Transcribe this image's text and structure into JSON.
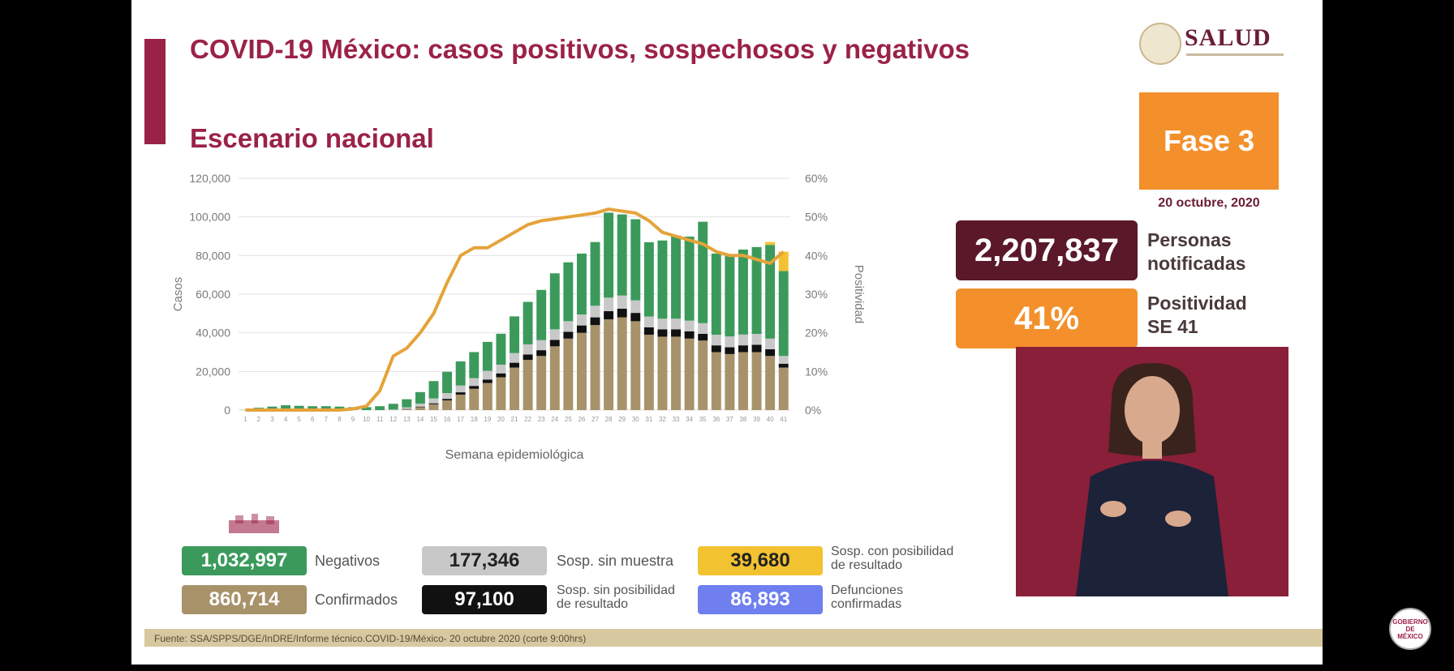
{
  "header": {
    "title": "COVID-19 México: casos positivos, sospechosos y negativos",
    "subtitle": "Escenario nacional",
    "logo_text": "SALUD"
  },
  "sidebar": {
    "phase": "Fase 3",
    "date": "20 octubre, 2020",
    "notified_value": "2,207,837",
    "notified_label": "Personas\nnotificadas",
    "positivity_value": "41%",
    "positivity_label": "Positividad\nSE 41"
  },
  "legend": {
    "negativos_value": "1,032,997",
    "negativos_label": "Negativos",
    "confirmados_value": "860,714",
    "confirmados_label": "Confirmados",
    "sin_muestra_value": "177,346",
    "sin_muestra_label": "Sosp. sin muestra",
    "sin_posibilidad_value": "97,100",
    "sin_posibilidad_label": "Sosp. sin posibilidad\nde resultado",
    "con_posibilidad_value": "39,680",
    "con_posibilidad_label": "Sosp. con posibilidad\nde resultado",
    "defunciones_value": "86,893",
    "defunciones_label": "Defunciones\nconfirmadas"
  },
  "footer": {
    "source": "Fuente: SSA/SPPS/DGE/InDRE/Informe técnico.COVID-19/México- 20 octubre 2020 (corte 9:00hrs)"
  },
  "colors": {
    "confirmados": "#a8926a",
    "sin_posibilidad": "#111111",
    "sin_muestra": "#c8c8c8",
    "negativos": "#3b9a5b",
    "con_posibilidad": "#f2c230",
    "positividad": "#e5a33a",
    "brand": "#9b2247",
    "phase": "#f3902b",
    "notified": "#5a1828",
    "defunciones": "#6f7ff0"
  },
  "chart_data": {
    "type": "bar",
    "stacked": true,
    "xlabel": "Semana epidemiológica",
    "ylabel": "Casos",
    "y2label": "Positividad",
    "ylim": [
      0,
      120000
    ],
    "y2lim": [
      0,
      60
    ],
    "yticks": [
      "120,000",
      "100,000",
      "80,000",
      "60,000",
      "40,000",
      "20,000",
      "0"
    ],
    "y2ticks": [
      "60%",
      "50%",
      "40%",
      "30%",
      "20%",
      "10%",
      "0%"
    ],
    "grid": true,
    "categories": [
      "1",
      "2",
      "3",
      "4",
      "5",
      "6",
      "7",
      "8",
      "9",
      "10",
      "11",
      "12",
      "13",
      "14",
      "15",
      "16",
      "17",
      "18",
      "19",
      "20",
      "21",
      "22",
      "23",
      "24",
      "25",
      "26",
      "27",
      "28",
      "29",
      "30",
      "31",
      "32",
      "33",
      "34",
      "35",
      "36",
      "37",
      "38",
      "39",
      "40",
      "41"
    ],
    "series": [
      {
        "name": "Confirmados",
        "values": [
          0,
          0,
          0,
          0,
          0,
          0,
          0,
          0,
          0,
          0,
          0,
          50,
          500,
          1500,
          3000,
          5000,
          8000,
          11000,
          14000,
          17000,
          22000,
          26000,
          28000,
          33000,
          37000,
          40000,
          44000,
          47000,
          48000,
          46000,
          39000,
          38000,
          38000,
          37000,
          36000,
          30000,
          29000,
          30000,
          30000,
          28000,
          22000
        ]
      },
      {
        "name": "Sosp. sin posibilidad de resultado",
        "values": [
          0,
          0,
          0,
          0,
          0,
          0,
          0,
          0,
          0,
          0,
          0,
          0,
          100,
          300,
          500,
          800,
          1200,
          1500,
          1800,
          2000,
          2500,
          2800,
          3000,
          3300,
          3500,
          3800,
          4000,
          4200,
          4500,
          4300,
          3800,
          3800,
          3800,
          3800,
          3500,
          3500,
          3500,
          3500,
          3800,
          3500,
          2000
        ]
      },
      {
        "name": "Sosp. sin muestra",
        "values": [
          0,
          0,
          0,
          0,
          0,
          0,
          0,
          0,
          0,
          0,
          0,
          200,
          800,
          1500,
          2500,
          3000,
          3500,
          4000,
          4500,
          4500,
          5000,
          5200,
          5200,
          5500,
          5500,
          5700,
          6000,
          7000,
          6800,
          6500,
          5600,
          5500,
          5500,
          5500,
          5500,
          5500,
          5600,
          5600,
          5600,
          5500,
          4000
        ]
      },
      {
        "name": "Negativos",
        "values": [
          100,
          1200,
          1800,
          2500,
          2200,
          2000,
          2000,
          1800,
          1500,
          1500,
          2000,
          3000,
          4200,
          6000,
          9000,
          11000,
          12500,
          13500,
          15000,
          16000,
          19000,
          22000,
          26000,
          29000,
          30500,
          31500,
          33000,
          44000,
          42000,
          42000,
          38500,
          40500,
          43000,
          43500,
          52500,
          42000,
          42000,
          44000,
          45000,
          48500,
          44000
        ]
      },
      {
        "name": "Sosp. con posibilidad de resultado",
        "values": [
          0,
          0,
          0,
          0,
          0,
          0,
          0,
          0,
          0,
          0,
          0,
          0,
          0,
          0,
          0,
          0,
          0,
          0,
          0,
          0,
          0,
          0,
          0,
          0,
          0,
          0,
          0,
          0,
          0,
          0,
          0,
          0,
          0,
          0,
          0,
          0,
          0,
          0,
          0,
          1500,
          10000
        ]
      }
    ],
    "line_series": {
      "name": "Positividad",
      "axis": "right",
      "values": [
        0,
        0,
        0,
        0,
        0,
        0,
        0,
        0,
        0.3,
        1,
        5,
        14,
        16,
        20,
        25,
        33,
        40,
        42,
        42,
        44,
        46,
        48,
        49,
        49.5,
        50,
        50.5,
        51,
        52,
        51.5,
        51,
        49,
        46,
        45,
        44,
        43,
        41,
        40,
        40,
        39,
        38,
        41
      ]
    }
  }
}
